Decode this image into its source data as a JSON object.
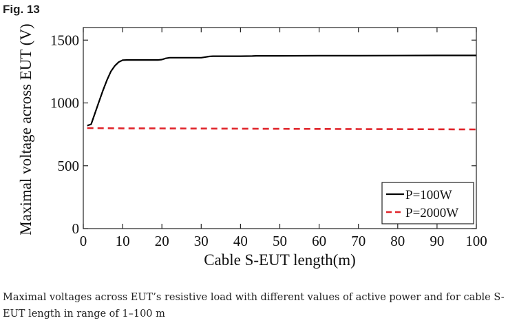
{
  "figure": {
    "label": "Fig. 13",
    "caption": "Maximal voltages across EUT’s resistive load with different values of active power and for cable S-EUT length in range of 1–100 m"
  },
  "chart_data": {
    "type": "line",
    "title": "",
    "xlabel": "Cable S-EUT length(m)",
    "ylabel": "Maximal voltage across EUT (V)",
    "xlim": [
      0,
      100
    ],
    "ylim": [
      0,
      1600
    ],
    "xticks": [
      0,
      10,
      20,
      30,
      40,
      50,
      60,
      70,
      80,
      90,
      100
    ],
    "yticks": [
      0,
      500,
      1000,
      1500
    ],
    "grid": false,
    "legend_position": "bottom-right",
    "series": [
      {
        "name": "P=100W",
        "color": "#000000",
        "style": "solid",
        "x": [
          1,
          2,
          3,
          4,
          5,
          6,
          7,
          8,
          9,
          10,
          11,
          12,
          15,
          19,
          20,
          21,
          22,
          25,
          30,
          31,
          32,
          33,
          40,
          43,
          44,
          50,
          60,
          70,
          80,
          90,
          100
        ],
        "y": [
          820,
          830,
          920,
          1010,
          1100,
          1180,
          1250,
          1295,
          1325,
          1340,
          1342,
          1342,
          1342,
          1342,
          1345,
          1355,
          1360,
          1360,
          1360,
          1365,
          1370,
          1372,
          1372,
          1373,
          1375,
          1375,
          1376,
          1376,
          1377,
          1378,
          1378
        ]
      },
      {
        "name": "P=2000W",
        "color": "#e0242a",
        "style": "dashed",
        "x": [
          1,
          10,
          20,
          30,
          40,
          50,
          60,
          70,
          80,
          90,
          100
        ],
        "y": [
          800,
          798,
          797,
          796,
          795,
          794,
          793,
          792,
          791,
          790,
          789
        ]
      }
    ]
  }
}
